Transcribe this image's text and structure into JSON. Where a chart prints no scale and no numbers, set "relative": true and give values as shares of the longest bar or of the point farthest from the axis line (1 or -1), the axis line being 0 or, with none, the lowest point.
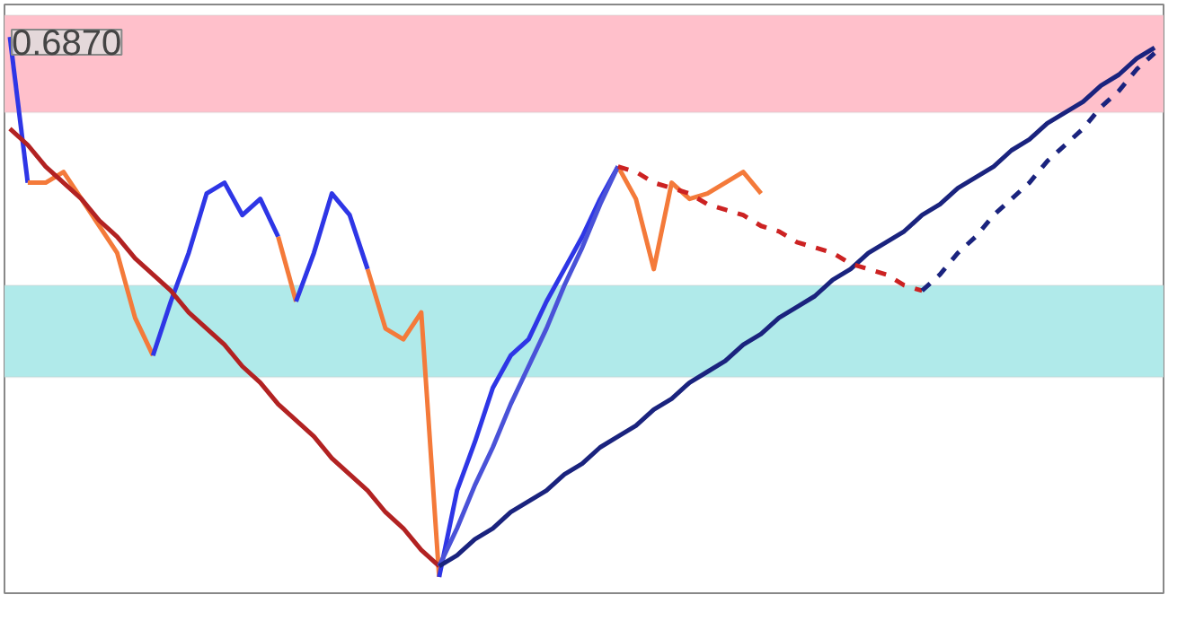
{
  "chart_data": {
    "type": "line",
    "relative": true,
    "tick_labels": false,
    "annotations": [
      "0.6870"
    ],
    "bands": [
      {
        "axis": "y",
        "from": 0.86,
        "to": 1.04,
        "color": "#ffc0cb"
      },
      {
        "axis": "y",
        "from": 0.37,
        "to": 0.54,
        "color": "#b0eaea"
      }
    ],
    "categories": [
      null,
      null,
      null,
      null,
      null,
      null,
      null,
      null,
      null,
      null,
      null,
      null,
      null,
      null,
      null,
      null,
      null,
      null,
      null,
      null,
      null,
      null,
      null,
      null,
      null,
      null,
      null,
      null,
      null,
      null,
      null,
      null,
      null,
      null,
      null,
      null,
      null,
      null,
      null,
      null,
      null,
      null,
      null,
      null,
      null,
      null,
      null,
      null,
      null,
      null,
      null,
      null,
      null,
      null,
      null,
      null,
      null,
      null,
      null,
      null,
      null,
      null,
      null,
      null,
      null
    ],
    "series": [
      {
        "color": "#2e36e6",
        "values": [
          1.0,
          0.73,
          null,
          null,
          null,
          null,
          null,
          null,
          null,
          null,
          null,
          null,
          null,
          null,
          null,
          null,
          null,
          null,
          null,
          null,
          null,
          null,
          null,
          null,
          null,
          null,
          null,
          null,
          null,
          null,
          null,
          null,
          null,
          null,
          null,
          null,
          null,
          null,
          null,
          null,
          null,
          null,
          null,
          null,
          null,
          null,
          null,
          null,
          null,
          null,
          null,
          null,
          null,
          null,
          null,
          null,
          null,
          null,
          null,
          null,
          null,
          null,
          null,
          null,
          null
        ]
      },
      {
        "color": "#f47a3a",
        "values": [
          null,
          0.73,
          0.73,
          0.75,
          0.7,
          0.65,
          0.6,
          0.48,
          0.41,
          null,
          null,
          null,
          null,
          null,
          null,
          null,
          null,
          null,
          null,
          null,
          null,
          null,
          null,
          null,
          null,
          null,
          null,
          null,
          null,
          null,
          null,
          null,
          null,
          null,
          null,
          null,
          null,
          null,
          null,
          null,
          null,
          null,
          null,
          null,
          null,
          null,
          null,
          null,
          null,
          null,
          null,
          null,
          null,
          null,
          null,
          null,
          null,
          null,
          null,
          null,
          null,
          null,
          null,
          null,
          null
        ]
      },
      {
        "color": "#2e36e6",
        "values": [
          null,
          null,
          null,
          null,
          null,
          null,
          null,
          null,
          0.41,
          0.51,
          0.6,
          0.71,
          0.73,
          0.67,
          0.7,
          0.63,
          null,
          null,
          null,
          null,
          null,
          null,
          null,
          null,
          null,
          null,
          null,
          null,
          null,
          null,
          null,
          null,
          null,
          null,
          null,
          null,
          null,
          null,
          null,
          null,
          null,
          null,
          null,
          null,
          null,
          null,
          null,
          null,
          null,
          null,
          null,
          null,
          null,
          null,
          null,
          null,
          null,
          null,
          null,
          null,
          null,
          null,
          null,
          null,
          null
        ]
      },
      {
        "color": "#f47a3a",
        "values": [
          null,
          null,
          null,
          null,
          null,
          null,
          null,
          null,
          null,
          null,
          null,
          null,
          null,
          null,
          null,
          0.63,
          0.51,
          null,
          null,
          null,
          null,
          null,
          null,
          null,
          null,
          null,
          null,
          null,
          null,
          null,
          null,
          null,
          null,
          null,
          null,
          null,
          null,
          null,
          null,
          null,
          null,
          null,
          null,
          null,
          null,
          null,
          null,
          null,
          null,
          null,
          null,
          null,
          null,
          null,
          null,
          null,
          null,
          null,
          null,
          null,
          null,
          null,
          null,
          null,
          null
        ]
      },
      {
        "color": "#2e36e6",
        "values": [
          null,
          null,
          null,
          null,
          null,
          null,
          null,
          null,
          null,
          null,
          null,
          null,
          null,
          null,
          null,
          null,
          0.51,
          0.6,
          0.71,
          0.67,
          0.57,
          null,
          null,
          null,
          null,
          null,
          null,
          null,
          null,
          null,
          null,
          null,
          null,
          null,
          null,
          null,
          null,
          null,
          null,
          null,
          null,
          null,
          null,
          null,
          null,
          null,
          null,
          null,
          null,
          null,
          null,
          null,
          null,
          null,
          null,
          null,
          null,
          null,
          null,
          null,
          null,
          null,
          null,
          null,
          null
        ]
      },
      {
        "color": "#f47a3a",
        "values": [
          null,
          null,
          null,
          null,
          null,
          null,
          null,
          null,
          null,
          null,
          null,
          null,
          null,
          null,
          null,
          null,
          null,
          null,
          null,
          null,
          0.57,
          0.46,
          0.44,
          0.49,
          0.0,
          null,
          null,
          null,
          null,
          null,
          null,
          null,
          null,
          null,
          null,
          null,
          null,
          null,
          null,
          null,
          null,
          null,
          null,
          null,
          null,
          null,
          null,
          null,
          null,
          null,
          null,
          null,
          null,
          null,
          null,
          null,
          null,
          null,
          null,
          null,
          null,
          null,
          null,
          null,
          null
        ]
      },
      {
        "color": "#2e36e6",
        "values": [
          null,
          null,
          null,
          null,
          null,
          null,
          null,
          null,
          null,
          null,
          null,
          null,
          null,
          null,
          null,
          null,
          null,
          null,
          null,
          null,
          null,
          null,
          null,
          null,
          0.0,
          0.16,
          0.25,
          0.35,
          0.41,
          0.44,
          0.51,
          0.57,
          0.63,
          0.7,
          0.76,
          null,
          null,
          null,
          null,
          null,
          null,
          null,
          null,
          null,
          null,
          null,
          null,
          null,
          null,
          null,
          null,
          null,
          null,
          null,
          null,
          null,
          null,
          null,
          null,
          null,
          null,
          null,
          null,
          null,
          null
        ]
      },
      {
        "color": "#f47a3a",
        "values": [
          null,
          null,
          null,
          null,
          null,
          null,
          null,
          null,
          null,
          null,
          null,
          null,
          null,
          null,
          null,
          null,
          null,
          null,
          null,
          null,
          null,
          null,
          null,
          null,
          null,
          null,
          null,
          null,
          null,
          null,
          null,
          null,
          null,
          null,
          0.76,
          0.7,
          0.57,
          0.73,
          0.7,
          0.71,
          0.73,
          0.75,
          0.71,
          null,
          null,
          null,
          null,
          null,
          null,
          null,
          null,
          null,
          null,
          null,
          null,
          null,
          null,
          null,
          null,
          null,
          null,
          null,
          null,
          null,
          null
        ]
      },
      {
        "color": "#b22222",
        "values": [
          0.83,
          0.8,
          0.76,
          0.73,
          0.7,
          0.66,
          0.63,
          0.59,
          0.56,
          0.53,
          0.49,
          0.46,
          0.43,
          0.39,
          0.36,
          0.32,
          0.29,
          0.26,
          0.22,
          0.19,
          0.16,
          0.12,
          0.09,
          0.05,
          0.02,
          null,
          null,
          null,
          null,
          null,
          null,
          null,
          null,
          null,
          null,
          null,
          null,
          null,
          null,
          null,
          null,
          null,
          null,
          null,
          null,
          null,
          null,
          null,
          null,
          null,
          null,
          null,
          null,
          null,
          null,
          null,
          null,
          null,
          null,
          null,
          null,
          null,
          null,
          null,
          null
        ]
      },
      {
        "color": "#4a52d8",
        "values": [
          null,
          null,
          null,
          null,
          null,
          null,
          null,
          null,
          null,
          null,
          null,
          null,
          null,
          null,
          null,
          null,
          null,
          null,
          null,
          null,
          null,
          null,
          null,
          null,
          0.02,
          0.09,
          0.17,
          0.24,
          0.32,
          0.39,
          0.46,
          0.54,
          0.61,
          0.69,
          0.76,
          null,
          null,
          null,
          null,
          null,
          null,
          null,
          null,
          null,
          null,
          null,
          null,
          null,
          null,
          null,
          null,
          null,
          null,
          null,
          null,
          null,
          null,
          null,
          null,
          null,
          null,
          null,
          null,
          null,
          null
        ]
      },
      {
        "color": "#1a237e",
        "values": [
          null,
          null,
          null,
          null,
          null,
          null,
          null,
          null,
          null,
          null,
          null,
          null,
          null,
          null,
          null,
          null,
          null,
          null,
          null,
          null,
          null,
          null,
          null,
          null,
          0.02,
          0.04,
          0.07,
          0.09,
          0.12,
          0.14,
          0.16,
          0.19,
          0.21,
          0.24,
          0.26,
          0.28,
          0.31,
          0.33,
          0.36,
          0.38,
          0.4,
          0.43,
          0.45,
          0.48,
          0.5,
          0.52,
          0.55,
          0.57,
          0.6,
          0.62,
          0.64,
          0.67,
          0.69,
          0.72,
          0.74,
          0.76,
          0.79,
          0.81,
          0.84,
          0.86,
          0.88,
          0.91,
          0.93,
          0.96,
          0.98
        ]
      },
      {
        "color": "#cc2222",
        "line_style": "dashed",
        "values": [
          null,
          null,
          null,
          null,
          null,
          null,
          null,
          null,
          null,
          null,
          null,
          null,
          null,
          null,
          null,
          null,
          null,
          null,
          null,
          null,
          null,
          null,
          null,
          null,
          null,
          null,
          null,
          null,
          null,
          null,
          null,
          null,
          null,
          null,
          0.76,
          0.75,
          0.73,
          0.72,
          0.71,
          0.69,
          0.68,
          0.67,
          0.65,
          0.64,
          0.62,
          0.61,
          0.6,
          0.58,
          0.57,
          0.56,
          0.54,
          0.53,
          null,
          null,
          null,
          null,
          null,
          null,
          null,
          null,
          null,
          null,
          null,
          null,
          null
        ]
      },
      {
        "color": "#1a237e",
        "line_style": "dashed",
        "values": [
          null,
          null,
          null,
          null,
          null,
          null,
          null,
          null,
          null,
          null,
          null,
          null,
          null,
          null,
          null,
          null,
          null,
          null,
          null,
          null,
          null,
          null,
          null,
          null,
          null,
          null,
          null,
          null,
          null,
          null,
          null,
          null,
          null,
          null,
          null,
          null,
          null,
          null,
          null,
          null,
          null,
          null,
          null,
          null,
          null,
          null,
          null,
          null,
          null,
          null,
          null,
          0.53,
          0.56,
          0.6,
          0.63,
          0.67,
          0.7,
          0.73,
          0.77,
          0.8,
          0.83,
          0.87,
          0.9,
          0.94,
          0.97
        ]
      }
    ]
  }
}
